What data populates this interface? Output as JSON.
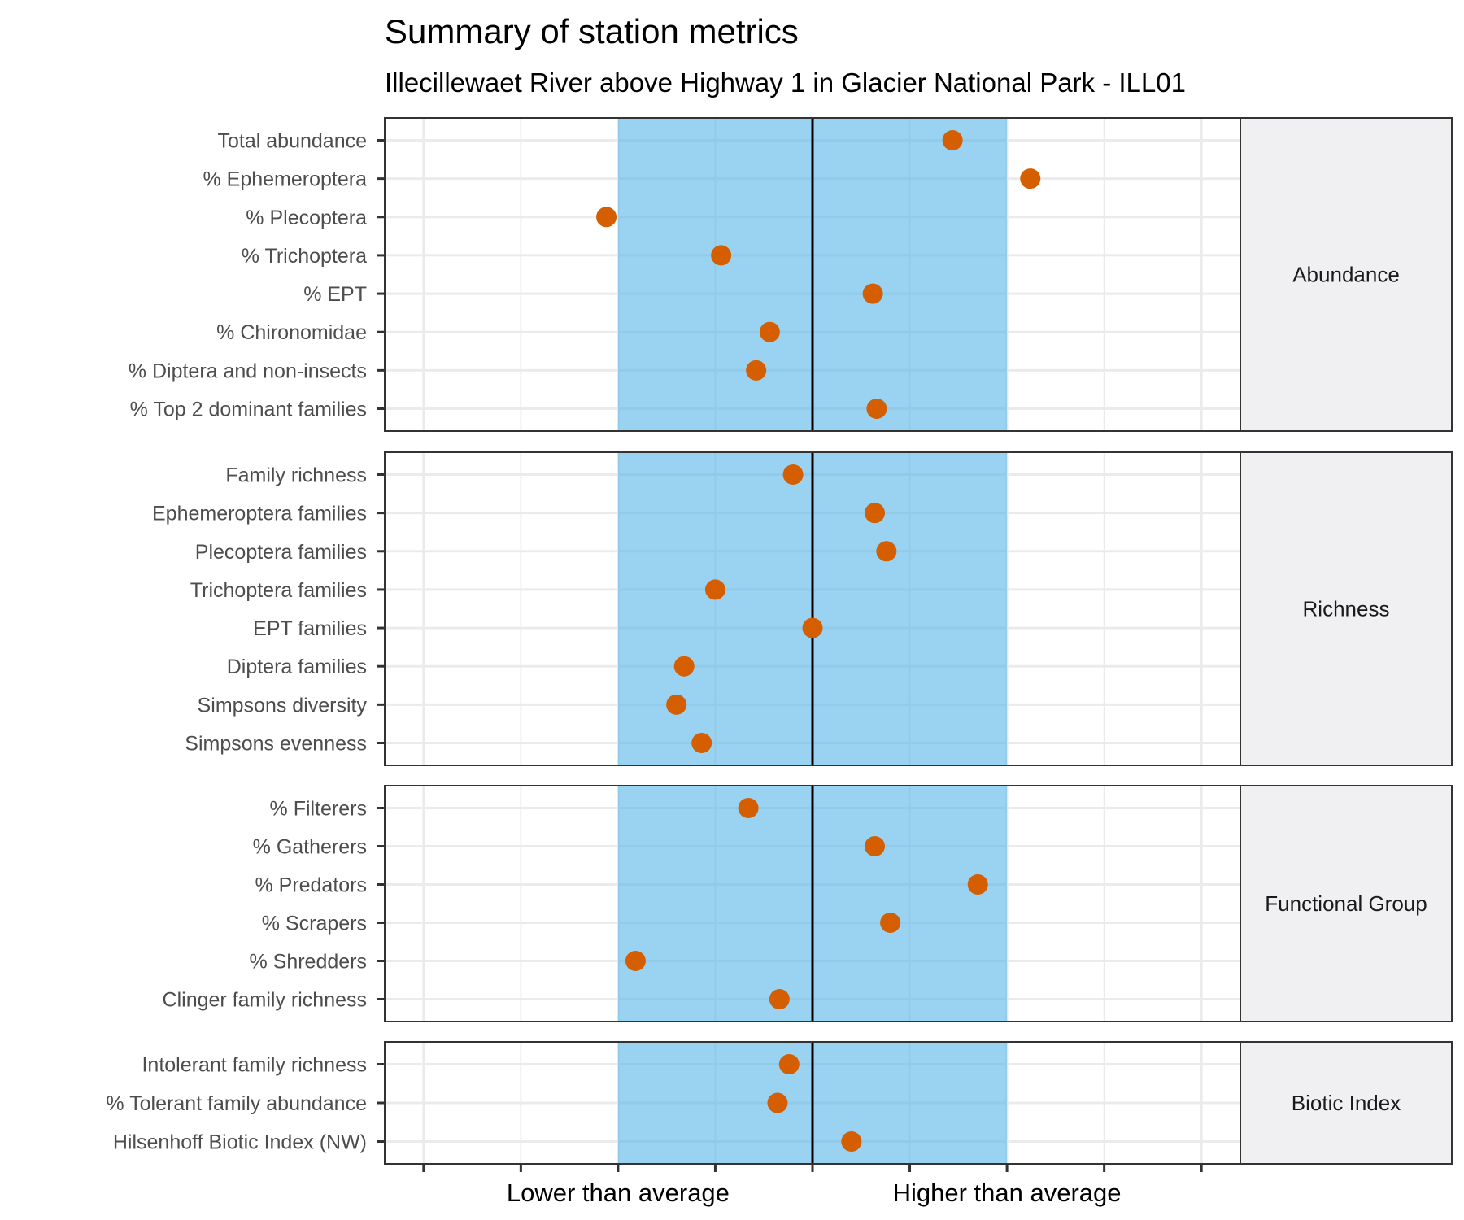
{
  "chart_data": {
    "type": "scatter",
    "title": "Summary of station metrics",
    "subtitle": "Illecillewaet River above Highway 1 in Glacier National Park - ILL01",
    "x_tick_labels": [
      "Lower than average",
      "Higher than average"
    ],
    "x_tick_values": [
      -1,
      1
    ],
    "xlim": [
      -2.2,
      2.2
    ],
    "reference_line": 0,
    "band": [
      -1,
      1
    ],
    "colors": {
      "point": "#d55e00",
      "band": "#56b4e9",
      "band_opacity": 0.6,
      "strip_bg": "#f0f0f2"
    },
    "panels": [
      {
        "name": "Abundance",
        "metrics": [
          {
            "label": "Total abundance",
            "value": 0.72
          },
          {
            "label": "% Ephemeroptera",
            "value": 1.12
          },
          {
            "label": "% Plecoptera",
            "value": -1.06
          },
          {
            "label": "% Trichoptera",
            "value": -0.47
          },
          {
            "label": "% EPT",
            "value": 0.31
          },
          {
            "label": "% Chironomidae",
            "value": -0.22
          },
          {
            "label": "% Diptera and non-insects",
            "value": -0.29
          },
          {
            "label": "% Top 2 dominant families",
            "value": 0.33
          }
        ]
      },
      {
        "name": "Richness",
        "metrics": [
          {
            "label": "Family richness",
            "value": -0.1
          },
          {
            "label": "Ephemeroptera families",
            "value": 0.32
          },
          {
            "label": "Plecoptera families",
            "value": 0.38
          },
          {
            "label": "Trichoptera families",
            "value": -0.5
          },
          {
            "label": "EPT families",
            "value": 0.0
          },
          {
            "label": "Diptera families",
            "value": -0.66
          },
          {
            "label": "Simpsons diversity",
            "value": -0.7
          },
          {
            "label": "Simpsons evenness",
            "value": -0.57
          }
        ]
      },
      {
        "name": "Functional Group",
        "metrics": [
          {
            "label": "% Filterers",
            "value": -0.33
          },
          {
            "label": "% Gatherers",
            "value": 0.32
          },
          {
            "label": "% Predators",
            "value": 0.85
          },
          {
            "label": "% Scrapers",
            "value": 0.4
          },
          {
            "label": "% Shredders",
            "value": -0.91
          },
          {
            "label": "Clinger family richness",
            "value": -0.17
          }
        ]
      },
      {
        "name": "Biotic Index",
        "metrics": [
          {
            "label": "Intolerant family richness",
            "value": -0.12
          },
          {
            "label": "% Tolerant family abundance",
            "value": -0.18
          },
          {
            "label": "Hilsenhoff Biotic Index (NW)",
            "value": 0.2
          }
        ]
      }
    ]
  }
}
